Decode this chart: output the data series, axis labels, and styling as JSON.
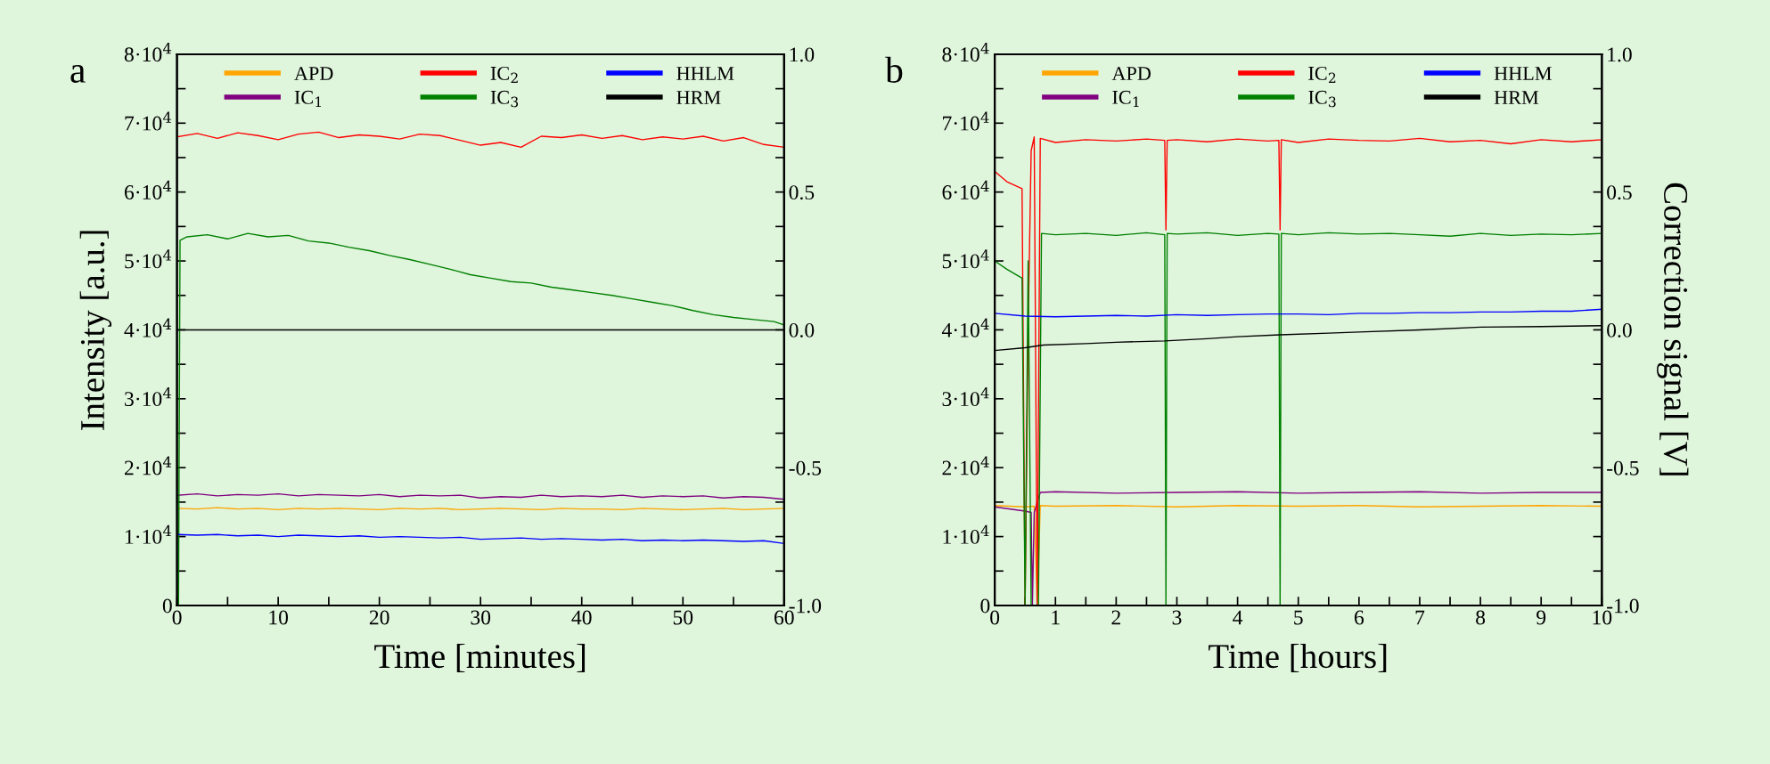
{
  "chart_data": [
    {
      "type": "line",
      "annotations": [
        "a"
      ],
      "xlabel": "Time [minutes]",
      "ylabel": "Intensity [a.u.]",
      "legend": "top",
      "grid": false,
      "xlim": [
        0,
        60
      ],
      "xticks": [
        0,
        {
          "value": 5,
          "label": null
        },
        10,
        {
          "value": 15,
          "label": null
        },
        20,
        {
          "value": 25,
          "label": null
        },
        30,
        {
          "value": 35,
          "label": null
        },
        40,
        {
          "value": 45,
          "label": null
        },
        50,
        {
          "value": 55,
          "label": null
        },
        60
      ],
      "ylim": [
        0,
        80000
      ],
      "yticks": [
        0,
        {
          "value": 5000,
          "label": null
        },
        {
          "value": 10000,
          "label": "1·10$^{4}$"
        },
        {
          "value": 15000,
          "label": null
        },
        {
          "value": 20000,
          "label": "2·10$^{4}$"
        },
        {
          "value": 25000,
          "label": null
        },
        {
          "value": 30000,
          "label": "3·10$^{4}$"
        },
        {
          "value": 35000,
          "label": null
        },
        {
          "value": 40000,
          "label": "4·10$^{4}$"
        },
        {
          "value": 45000,
          "label": null
        },
        {
          "value": 50000,
          "label": "5·10$^{4}$"
        },
        {
          "value": 55000,
          "label": null
        },
        {
          "value": 60000,
          "label": "6·10$^{4}$"
        },
        {
          "value": 65000,
          "label": null
        },
        {
          "value": 70000,
          "label": "7·10$^{4}$"
        },
        {
          "value": 75000,
          "label": null
        },
        {
          "value": 80000,
          "label": "8·10$^{4}$"
        }
      ],
      "y2lim": [
        -1.0,
        1.0
      ],
      "y2ticks": [
        {
          "value": -1,
          "label": "-1.0"
        },
        {
          "value": -0.875,
          "label": null
        },
        {
          "value": -0.75,
          "label": null
        },
        {
          "value": -0.625,
          "label": null
        },
        {
          "value": -0.5,
          "label": "-0.5"
        },
        {
          "value": -0.375,
          "label": null
        },
        {
          "value": -0.25,
          "label": null
        },
        {
          "value": -0.125,
          "label": null
        },
        {
          "value": 0,
          "label": "0.0"
        },
        {
          "value": 0.125,
          "label": null
        },
        {
          "value": 0.25,
          "label": null
        },
        {
          "value": 0.375,
          "label": null
        },
        {
          "value": 0.5,
          "label": "0.5"
        },
        {
          "value": 0.625,
          "label": null
        },
        {
          "value": 0.75,
          "label": null
        },
        {
          "value": 0.875,
          "label": null
        },
        {
          "value": 1,
          "label": "1.0"
        }
      ],
      "x": [
        0,
        2,
        4,
        6,
        8,
        10,
        12,
        14,
        16,
        18,
        20,
        22,
        24,
        26,
        28,
        30,
        32,
        34,
        36,
        38,
        40,
        42,
        44,
        46,
        48,
        50,
        52,
        54,
        56,
        58,
        60
      ],
      "series": [
        {
          "name": "APD",
          "color": "#ffa500",
          "values": [
            14100,
            14000,
            14200,
            14000,
            14100,
            13900,
            14100,
            14000,
            14100,
            14000,
            13900,
            14100,
            14000,
            14100,
            13900,
            14000,
            14100,
            14000,
            13900,
            14100,
            14000,
            14000,
            13900,
            14100,
            14000,
            13900,
            14000,
            14100,
            13900,
            14000,
            14100
          ]
        },
        {
          "name": "IC$_{1}$",
          "color": "#800080",
          "values": [
            16000,
            16200,
            15900,
            16100,
            16000,
            16200,
            15900,
            16100,
            16000,
            15900,
            16100,
            15800,
            16000,
            15900,
            16000,
            15600,
            15800,
            15700,
            16000,
            15800,
            15900,
            15800,
            16000,
            15700,
            15900,
            15800,
            15900,
            15600,
            15800,
            15700,
            15400
          ]
        },
        {
          "name": "IC$_{2}$",
          "color": "#ff0000",
          "values": [
            68000,
            68500,
            67800,
            68600,
            68200,
            67600,
            68400,
            68700,
            67900,
            68300,
            68100,
            67700,
            68400,
            68200,
            67500,
            66800,
            67200,
            66500,
            68100,
            67900,
            68300,
            67800,
            68200,
            67600,
            68000,
            67700,
            68100,
            67400,
            67900,
            66900,
            66500
          ]
        },
        {
          "name": "IC$_{3}$",
          "color": "#008000",
          "x": [
            0.15,
            0.3,
            1,
            3,
            5,
            7,
            9,
            11,
            13,
            15,
            17,
            19,
            21,
            23,
            25,
            27,
            29,
            31,
            33,
            35,
            37,
            39,
            41,
            43,
            45,
            47,
            49,
            51,
            53,
            55,
            57,
            59,
            60
          ],
          "values": [
            0,
            53000,
            53500,
            53800,
            53200,
            54000,
            53500,
            53700,
            52900,
            52600,
            52000,
            51500,
            50800,
            50200,
            49500,
            48800,
            48000,
            47500,
            47000,
            46800,
            46200,
            45800,
            45400,
            45000,
            44500,
            44000,
            43500,
            42800,
            42200,
            41800,
            41500,
            41200,
            40700
          ]
        },
        {
          "name": "HHLM",
          "color": "#0000ff",
          "values": [
            10300,
            10200,
            10300,
            10100,
            10200,
            10000,
            10200,
            10100,
            10000,
            10100,
            9900,
            10000,
            9900,
            9800,
            9900,
            9600,
            9700,
            9800,
            9600,
            9700,
            9600,
            9500,
            9600,
            9400,
            9500,
            9400,
            9500,
            9400,
            9300,
            9400,
            9000
          ]
        },
        {
          "name": "HRM",
          "color": "#000000",
          "axis": "y2",
          "x": [
            0,
            60
          ],
          "values": [
            0.0,
            0.0
          ]
        }
      ]
    },
    {
      "type": "line",
      "annotations": [
        "b"
      ],
      "xlabel": "Time [hours]",
      "y2label": "Correction signal [V]",
      "legend": "top",
      "grid": false,
      "xlim": [
        0,
        10
      ],
      "xticks": [
        0,
        {
          "value": 0.5,
          "label": null
        },
        1,
        {
          "value": 1.5,
          "label": null
        },
        2,
        {
          "value": 2.5,
          "label": null
        },
        3,
        {
          "value": 3.5,
          "label": null
        },
        4,
        {
          "value": 4.5,
          "label": null
        },
        5,
        {
          "value": 5.5,
          "label": null
        },
        6,
        {
          "value": 6.5,
          "label": null
        },
        7,
        {
          "value": 7.5,
          "label": null
        },
        8,
        {
          "value": 8.5,
          "label": null
        },
        9,
        {
          "value": 9.5,
          "label": null
        },
        10
      ],
      "ylim": [
        0,
        80000
      ],
      "yticks": [
        0,
        {
          "value": 5000,
          "label": null
        },
        {
          "value": 10000,
          "label": "1·10$^{4}$"
        },
        {
          "value": 15000,
          "label": null
        },
        {
          "value": 20000,
          "label": "2·10$^{4}$"
        },
        {
          "value": 25000,
          "label": null
        },
        {
          "value": 30000,
          "label": "3·10$^{4}$"
        },
        {
          "value": 35000,
          "label": null
        },
        {
          "value": 40000,
          "label": "4·10$^{4}$"
        },
        {
          "value": 45000,
          "label": null
        },
        {
          "value": 50000,
          "label": "5·10$^{4}$"
        },
        {
          "value": 55000,
          "label": null
        },
        {
          "value": 60000,
          "label": "6·10$^{4}$"
        },
        {
          "value": 65000,
          "label": null
        },
        {
          "value": 70000,
          "label": "7·10$^{4}$"
        },
        {
          "value": 75000,
          "label": null
        },
        {
          "value": 80000,
          "label": "8·10$^{4}$"
        }
      ],
      "y2lim": [
        -1.0,
        1.0
      ],
      "y2ticks": [
        {
          "value": -1,
          "label": "-1.0"
        },
        {
          "value": -0.875,
          "label": null
        },
        {
          "value": -0.75,
          "label": null
        },
        {
          "value": -0.625,
          "label": null
        },
        -0.5,
        {
          "value": -0.375,
          "label": null
        },
        {
          "value": -0.25,
          "label": null
        },
        {
          "value": -0.125,
          "label": null
        },
        {
          "value": 0,
          "label": "0.0"
        },
        {
          "value": 0.125,
          "label": null
        },
        {
          "value": 0.25,
          "label": null
        },
        {
          "value": 0.375,
          "label": null
        },
        0.5,
        {
          "value": 0.625,
          "label": null
        },
        {
          "value": 0.75,
          "label": null
        },
        {
          "value": 0.875,
          "label": null
        },
        {
          "value": 1,
          "label": "1.0"
        }
      ],
      "series": [
        {
          "name": "APD",
          "color": "#ffa500",
          "x": [
            0,
            0.5,
            0.65,
            0.7,
            0.75,
            1,
            2,
            3,
            4,
            5,
            6,
            7,
            8,
            9,
            10
          ],
          "values": [
            14500,
            14300,
            14400,
            0,
            14500,
            14400,
            14500,
            14300,
            14500,
            14400,
            14500,
            14300,
            14400,
            14500,
            14400
          ]
        },
        {
          "name": "IC$_{1}$",
          "color": "#800080",
          "x": [
            0,
            0.5,
            0.6,
            0.62,
            0.65,
            0.75,
            1,
            2,
            3,
            4,
            5,
            6,
            7,
            8,
            9,
            10
          ],
          "values": [
            14300,
            13700,
            13500,
            0,
            13500,
            16400,
            16500,
            16300,
            16400,
            16500,
            16300,
            16400,
            16500,
            16300,
            16400,
            16400
          ]
        },
        {
          "name": "IC$_{2}$",
          "color": "#ff0000",
          "x": [
            0,
            0.2,
            0.45,
            0.5,
            0.55,
            0.6,
            0.65,
            0.7,
            0.75,
            1,
            1.5,
            2,
            2.5,
            2.8,
            2.82,
            2.84,
            3,
            3.5,
            4,
            4.5,
            4.68,
            4.7,
            4.72,
            5,
            5.5,
            6,
            6.5,
            7,
            7.5,
            8,
            8.5,
            9,
            9.5,
            10
          ],
          "values": [
            63000,
            61500,
            60500,
            0,
            40000,
            66000,
            68000,
            0,
            67800,
            67200,
            67600,
            67400,
            67700,
            67500,
            54500,
            67500,
            67600,
            67300,
            67700,
            67400,
            67500,
            54500,
            67600,
            67200,
            67700,
            67500,
            67400,
            67800,
            67300,
            67500,
            67000,
            67600,
            67300,
            67600
          ]
        },
        {
          "name": "IC$_{3}$",
          "color": "#008000",
          "x": [
            0,
            0.2,
            0.45,
            0.5,
            0.55,
            0.6,
            0.72,
            0.77,
            1,
            1.5,
            2,
            2.5,
            2.8,
            2.82,
            2.84,
            3,
            3.5,
            4,
            4.5,
            4.68,
            4.7,
            4.72,
            5,
            5.5,
            6,
            6.5,
            7,
            7.5,
            8,
            8.5,
            9,
            9.5,
            10
          ],
          "values": [
            50000,
            48800,
            47500,
            0,
            50000,
            0,
            0,
            54000,
            53800,
            54000,
            53700,
            54100,
            53800,
            0,
            54000,
            53900,
            54100,
            53700,
            54000,
            53900,
            0,
            54000,
            53800,
            54100,
            53900,
            54000,
            53800,
            53600,
            54000,
            53700,
            53900,
            53800,
            54000
          ]
        },
        {
          "name": "HHLM",
          "color": "#0000ff",
          "x": [
            0,
            0.5,
            1,
            1.5,
            2,
            2.5,
            3,
            3.5,
            4,
            4.5,
            5,
            5.5,
            6,
            6.5,
            7,
            7.5,
            8,
            8.5,
            9,
            9.5,
            10
          ],
          "values": [
            42400,
            42000,
            41900,
            42000,
            42100,
            42000,
            42200,
            42100,
            42200,
            42300,
            42300,
            42200,
            42400,
            42400,
            42500,
            42500,
            42600,
            42600,
            42700,
            42700,
            43000
          ]
        },
        {
          "name": "HRM",
          "color": "#000000",
          "axis": "y2",
          "x": [
            0,
            0.5,
            0.8,
            1.5,
            2,
            2.8,
            3.5,
            4,
            4.7,
            5.5,
            6,
            7,
            8,
            9,
            10
          ],
          "values": [
            -0.075,
            -0.065,
            -0.055,
            -0.05,
            -0.045,
            -0.04,
            -0.032,
            -0.025,
            -0.018,
            -0.012,
            -0.008,
            0,
            0.01,
            0.012,
            0.015
          ]
        }
      ]
    }
  ]
}
